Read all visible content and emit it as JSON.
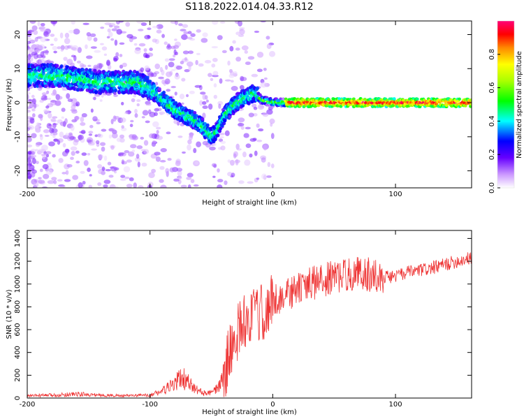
{
  "title": "S118.2022.014.04.33.R12",
  "chart_data": [
    {
      "type": "heatmap",
      "xlabel": "Height of straight line (km)",
      "ylabel": "Frequency (Hz)",
      "xlim": [
        -200,
        162
      ],
      "ylim": [
        -25,
        24
      ],
      "xticks": [
        -200,
        -100,
        0,
        100
      ],
      "yticks": [
        -20,
        -10,
        0,
        10,
        20
      ],
      "ridge": {
        "x": [
          -200,
          -180,
          -160,
          -140,
          -120,
          -110,
          -100,
          -90,
          -80,
          -70,
          -60,
          -50,
          -45,
          -40,
          -35,
          -30,
          -25,
          -20,
          -15,
          -10,
          0,
          20,
          50,
          100,
          162
        ],
        "y": [
          8,
          8,
          7,
          6,
          6,
          6,
          4,
          1,
          -2,
          -4,
          -6,
          -10,
          -8,
          -4,
          -2,
          0,
          1,
          2,
          3,
          1,
          0,
          0,
          0,
          0,
          0
        ]
      },
      "colorbar": {
        "label": "Normalized spectral amplitude",
        "range": [
          0.0,
          1.0
        ],
        "ticks": [
          0.0,
          0.2,
          0.4,
          0.6,
          0.8
        ]
      }
    },
    {
      "type": "line",
      "xlabel": "Height of straight line (km)",
      "ylabel": "SNR (10 * v/v)",
      "xlim": [
        -200,
        162
      ],
      "ylim": [
        0,
        1470
      ],
      "xticks": [
        -200,
        -100,
        0,
        100
      ],
      "yticks": [
        0,
        200,
        400,
        600,
        800,
        1000,
        1200,
        1400
      ],
      "color": "#ee3333",
      "series": [
        {
          "x": [
            -200,
            -180,
            -160,
            -140,
            -120,
            -100,
            -90,
            -80,
            -75,
            -70,
            -65,
            -60,
            -55,
            -50,
            -45,
            -40,
            -35,
            -30,
            -25,
            -20,
            -15,
            -10,
            -5,
            0,
            10,
            20,
            30,
            40,
            50,
            60,
            70,
            80,
            90,
            100,
            110,
            120,
            130,
            140,
            150,
            162
          ],
          "y": [
            20,
            25,
            35,
            25,
            20,
            25,
            60,
            120,
            180,
            150,
            90,
            60,
            40,
            45,
            80,
            200,
            400,
            550,
            650,
            700,
            720,
            740,
            760,
            850,
            900,
            950,
            1000,
            1030,
            1060,
            1080,
            1100,
            1080,
            1060,
            1070,
            1100,
            1120,
            1140,
            1170,
            1200,
            1230
          ]
        }
      ]
    }
  ]
}
